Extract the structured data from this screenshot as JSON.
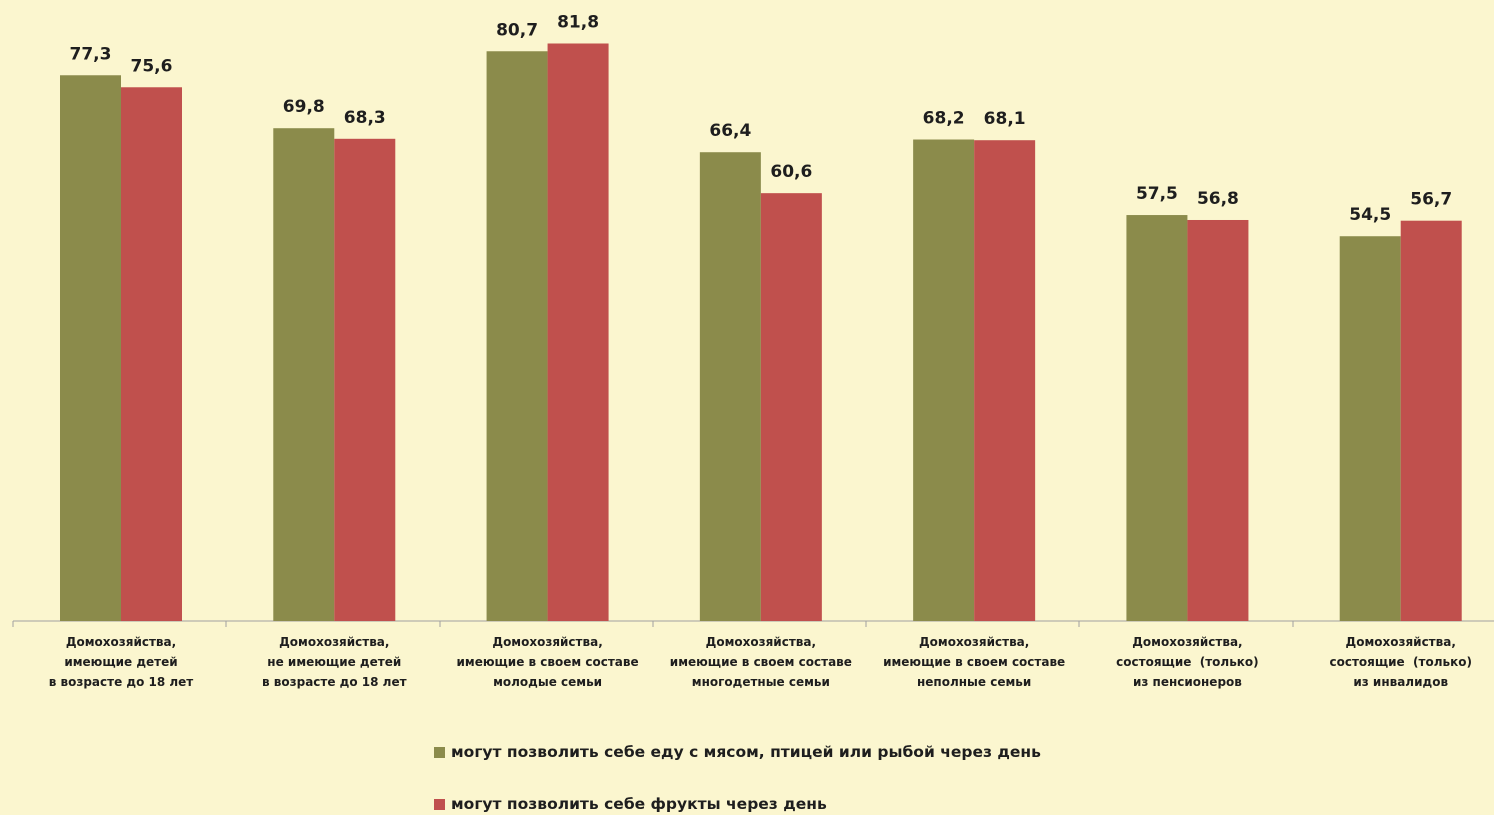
{
  "colors": {
    "background": "#fbf6cf",
    "series_1": "#8b8b4b",
    "series_2": "#c0504d",
    "axis": "#a0a0a0"
  },
  "chart_data": {
    "type": "bar",
    "title": "",
    "xlabel": "",
    "ylabel": "",
    "ylim": [
      0,
      85
    ],
    "grid": false,
    "legend_position": "bottom",
    "categories": [
      [
        "Домохозяйства,",
        "имеющие детей",
        "в возрасте до 18 лет"
      ],
      [
        "Домохозяйства,",
        "не имеющие детей",
        "в возрасте до 18 лет"
      ],
      [
        "Домохозяйства,",
        "имеющие в своем составе",
        "молодые семьи"
      ],
      [
        "Домохозяйства,",
        "имеющие в своем составе",
        "многодетные семьи"
      ],
      [
        "Домохозяйства,",
        "имеющие в своем составе",
        "неполные семьи"
      ],
      [
        "Домохозяйства,",
        "состоящие  (только)",
        "из пенсионеров"
      ],
      [
        "Домохозяйства,",
        "состоящие  (только)",
        "из инвалидов"
      ]
    ],
    "series": [
      {
        "name": "могут позволить себе еду с мясом, птицей или рыбой через день",
        "values": [
          77.3,
          69.8,
          80.7,
          66.4,
          68.2,
          57.5,
          54.5
        ],
        "labels": [
          "77,3",
          "69,8",
          "80,7",
          "66,4",
          "68,2",
          "57,5",
          "54,5"
        ]
      },
      {
        "name": "могут позволить себе фрукты через день",
        "values": [
          75.6,
          68.3,
          81.8,
          60.6,
          68.1,
          56.8,
          56.7
        ],
        "labels": [
          "75,6",
          "68,3",
          "81,8",
          "60,6",
          "68,1",
          "56,8",
          "56,7"
        ]
      }
    ]
  }
}
